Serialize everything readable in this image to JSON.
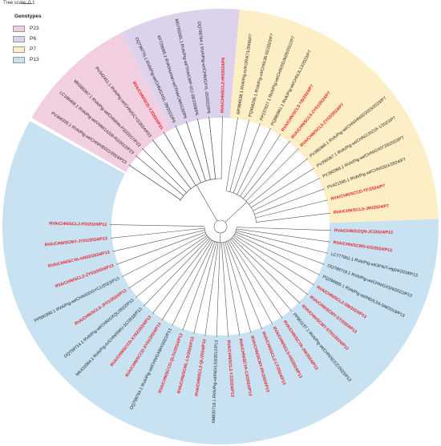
{
  "scale": {
    "label": "Tree scale: 0.1"
  },
  "legend": {
    "title": "Genotypes",
    "items": [
      {
        "label": "P23",
        "color": "#f2cfe0"
      },
      {
        "label": "P6",
        "color": "#dcd2ec"
      },
      {
        "label": "P7",
        "color": "#fcefc6"
      },
      {
        "label": "P13",
        "color": "#c8e2f2"
      }
    ]
  },
  "label_colors": {
    "new": "#e8202a",
    "reference": "#1a1a1a"
  },
  "tree": {
    "sectors": [
      {
        "genotype": "P6",
        "start": 333,
        "end": 5
      },
      {
        "genotype": "P7",
        "start": 5,
        "end": 88
      },
      {
        "genotype": "P13",
        "start": 88,
        "end": 299
      },
      {
        "genotype": "P23",
        "start": 300,
        "end": 333
      }
    ],
    "leaves": [
      {
        "label": "RVA/CHN/SCL2-HH/2024/P6",
        "angle": 1,
        "new": true
      },
      {
        "label": "OQ799784.1 RVA/Pig-wt/CHN/GXYL-20/2022/P6",
        "angle": 354,
        "new": false
      },
      {
        "label": "MG765565.1 RVA/Pig-wt/THA/CMP-011-09/2009/P6",
        "angle": 348,
        "new": false
      },
      {
        "label": "KF726065.1 RVA/Human-wt/THA/CMH120/P6",
        "angle": 342,
        "new": false
      },
      {
        "label": "OQ799776.1 RVA/Pig-wt/CHN/GXGL-39/2022/P6",
        "angle": 336,
        "new": false
      },
      {
        "label": "RVA/CHN/SCD-YJ/2024/P23",
        "angle": 329,
        "new": true
      },
      {
        "label": "PV342451.1 RVA/Pig-wt/CHN/GCY2/2024/P23",
        "angle": 322,
        "new": false
      },
      {
        "label": "MN380367.1 RVA/Pig-wt/CHN/HN-P32/2017/P23",
        "angle": 315,
        "new": false
      },
      {
        "label": "LC186469.1 RVA/Pig-wt/VNM/14209-R2/2012/P23",
        "angle": 310,
        "new": false
      },
      {
        "label": "PV368335.1 RVA/Pig-wt/CHN/HE021/2024/P23",
        "angle": 304,
        "new": false
      },
      {
        "label": "MF984538.1 RVA/Pig-tc/KOR/K71/2008/P7",
        "angle": 9,
        "new": false
      },
      {
        "label": "PQ458295.1 RVA/Pig-wt/CHN/JR-02/2023/P7",
        "angle": 15,
        "new": false
      },
      {
        "label": "PP237627.1 RVA/Pig-wt/CHN/SDJN05/2022/P7",
        "angle": 21,
        "new": false
      },
      {
        "label": "PQ880961.1 RVA/Pig-wt/CHN/JL13/2023/P7",
        "angle": 27,
        "new": false
      },
      {
        "label": "RVA/CHN/SCL5-YB/2024/P7",
        "angle": 33,
        "new": true
      },
      {
        "label": "RVA/CHN/SCL5-ZY01/2024/P7",
        "angle": 39,
        "new": true
      },
      {
        "label": "RVA/CHN/SCL5-ZY02/2024/P7",
        "angle": 45,
        "new": true
      },
      {
        "label": "PV390368.1 RVA/Pig-wt/CHN/HNSD2023/2023/P7",
        "angle": 52,
        "new": false
      },
      {
        "label": "PV390367.1 RVA/Pig-wt/CHN/ZJ0216-1/2023/P7",
        "angle": 58,
        "new": false
      },
      {
        "label": "PV390366.1 RVA/Pig-wt/CHN/GX0728/2023/P7",
        "angle": 64,
        "new": false
      },
      {
        "label": "PV421595.1 RVA/Pig-wt/CHN/GD1/2024/P7",
        "angle": 70,
        "new": false
      },
      {
        "label": "RVA/CHN/SCCD-TF/2024/P7",
        "angle": 76,
        "new": true
      },
      {
        "label": "RVA/CHN/SCL5-JW/2024/P7",
        "angle": 83,
        "new": true
      },
      {
        "label": "RVA/CHN/GZQN-JC/2024/P13",
        "angle": 92,
        "new": true
      },
      {
        "label": "RVA/CHN/SCMS-GS/2024/P13",
        "angle": 98,
        "new": true
      },
      {
        "label": "LC777951.1 RVA/Pig-wt/JPN/T-Hg04/2018/P13",
        "angle": 104,
        "new": false
      },
      {
        "label": "OQ799719.1 RVA/Pig-wt/CHN/GXSN/2022/P13",
        "angle": 110,
        "new": false
      },
      {
        "label": "PQ298905.1 RVA/Pig-wt/IND/LS4-SM/2019/P13",
        "angle": 116,
        "new": false
      },
      {
        "label": "RVA/CHN/SCL2-SB/2024/P13",
        "angle": 122,
        "new": true
      },
      {
        "label": "RVA/CHN/SCMY-ST/2024/P13",
        "angle": 128,
        "new": true
      },
      {
        "label": "RVA/CHN/SCMY-ST01/2024/P13",
        "angle": 134,
        "new": true
      },
      {
        "label": "PP951137.1 RVA/Pig-wt/CHN/SCCZ/2023/P13",
        "angle": 140,
        "new": false
      },
      {
        "label": "RVA/CHN/SCYA-JW/2024/P13",
        "angle": 146,
        "new": true
      },
      {
        "label": "RVA/CHN/SCL5-HS/2024/P13",
        "angle": 152,
        "new": true
      },
      {
        "label": "RVA/CHN/SCLZ-LT/2024/P13",
        "angle": 158,
        "new": true
      },
      {
        "label": "RVA/CHN/SCMY-PA/2024/P13",
        "angle": 164,
        "new": true
      },
      {
        "label": "RVA/CHN/SCYA-CX/2024/P13",
        "angle": 170,
        "new": true
      },
      {
        "label": "RVA/CHN/SCL2-YZ/2024/P13",
        "angle": 176,
        "new": true
      },
      {
        "label": "KM820718.1 RVA/Pig-wt/IND/LS3/2012/P13",
        "angle": 182,
        "new": false
      },
      {
        "label": "RVA/CHN/SCL2-QL/2024/P13",
        "angle": 188,
        "new": true
      },
      {
        "label": "RVA/CHN/SCML-LS/2024/P13",
        "angle": 194,
        "new": true
      },
      {
        "label": "RVA/CHN/SCCD-QL01/2024/P13",
        "angle": 200,
        "new": true
      },
      {
        "label": "OQ799764.1 RVA/Pig-wt/CHN/GXBH/2022/P13",
        "angle": 206,
        "new": false
      },
      {
        "label": "RVA/CHN/SCCD-XY01/2024/P13",
        "angle": 212,
        "new": true
      },
      {
        "label": "RVA/CHN/SCCD-XY02/2024/P13",
        "angle": 218,
        "new": true
      },
      {
        "label": "MK431084.1 RVA/Pig-tc/CHN/SWU-1C/2018/P13",
        "angle": 224,
        "new": false
      },
      {
        "label": "OQ799714.1 RVA/Pig-wt/CHN/GXQL/2022/P13",
        "angle": 230,
        "new": false
      },
      {
        "label": "RVA/CHN/SCL5-JF01/2024/P13",
        "angle": 236,
        "new": true
      },
      {
        "label": "PP580380.1 RVA/Pig-wt/CHN/GDGYC1/2023/P13",
        "angle": 243,
        "new": false
      },
      {
        "label": "RVA/CHN/SCL2-ZY02/2024/P13",
        "angle": 250,
        "new": true
      },
      {
        "label": "RVA/CHN/SCYA-HS02/2024/P13",
        "angle": 257,
        "new": true
      },
      {
        "label": "RVA/CHN/SCMY-JY01/2024/P13",
        "angle": 264,
        "new": true
      },
      {
        "label": "RVA/CHN/SCL2-FD/2024/P13",
        "angle": 271,
        "new": true
      }
    ]
  }
}
